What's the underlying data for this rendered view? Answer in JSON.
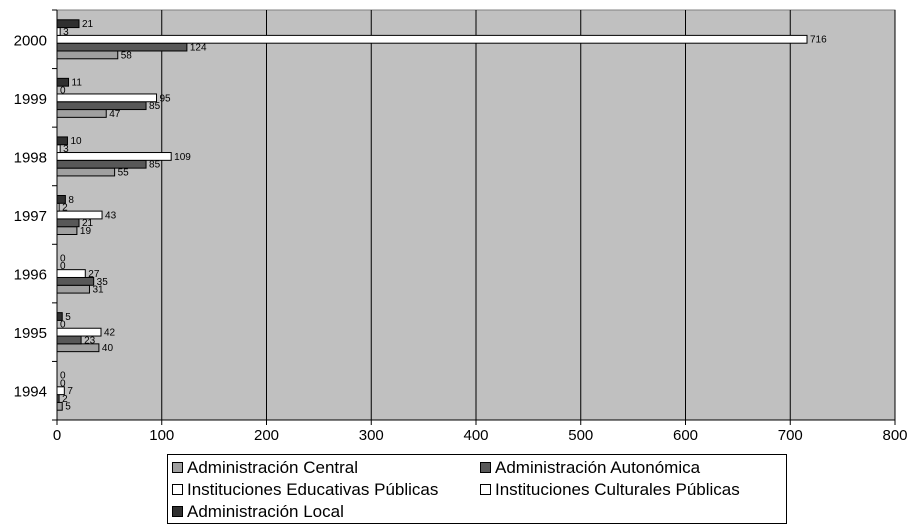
{
  "chart_data": {
    "type": "bar",
    "orientation": "horizontal",
    "categories": [
      "1994",
      "1995",
      "1996",
      "1997",
      "1998",
      "1999",
      "2000"
    ],
    "series": [
      {
        "name": "Administración Central",
        "color": "#a0a0a0",
        "values": [
          5,
          40,
          31,
          19,
          55,
          47,
          58
        ]
      },
      {
        "name": "Administración Autonómica",
        "color": "#585858",
        "values": [
          2,
          23,
          35,
          21,
          85,
          85,
          124
        ]
      },
      {
        "name": "Instituciones Educativas Públicas",
        "color": "#ffffff",
        "values": [
          7,
          42,
          27,
          43,
          109,
          95,
          716
        ]
      },
      {
        "name": "Instituciones Culturales Públicas",
        "color": "#ffffff",
        "values": [
          0,
          0,
          0,
          2,
          3,
          0,
          3
        ]
      },
      {
        "name": "Administración Local",
        "color": "#303030",
        "values": [
          0,
          5,
          0,
          8,
          10,
          11,
          21
        ]
      }
    ],
    "x_ticks": [
      0,
      100,
      200,
      300,
      400,
      500,
      600,
      700,
      800
    ],
    "xlim": [
      0,
      800
    ],
    "grid": "vertical",
    "plot_background": "#c0c0c0",
    "legend_position": "bottom"
  }
}
